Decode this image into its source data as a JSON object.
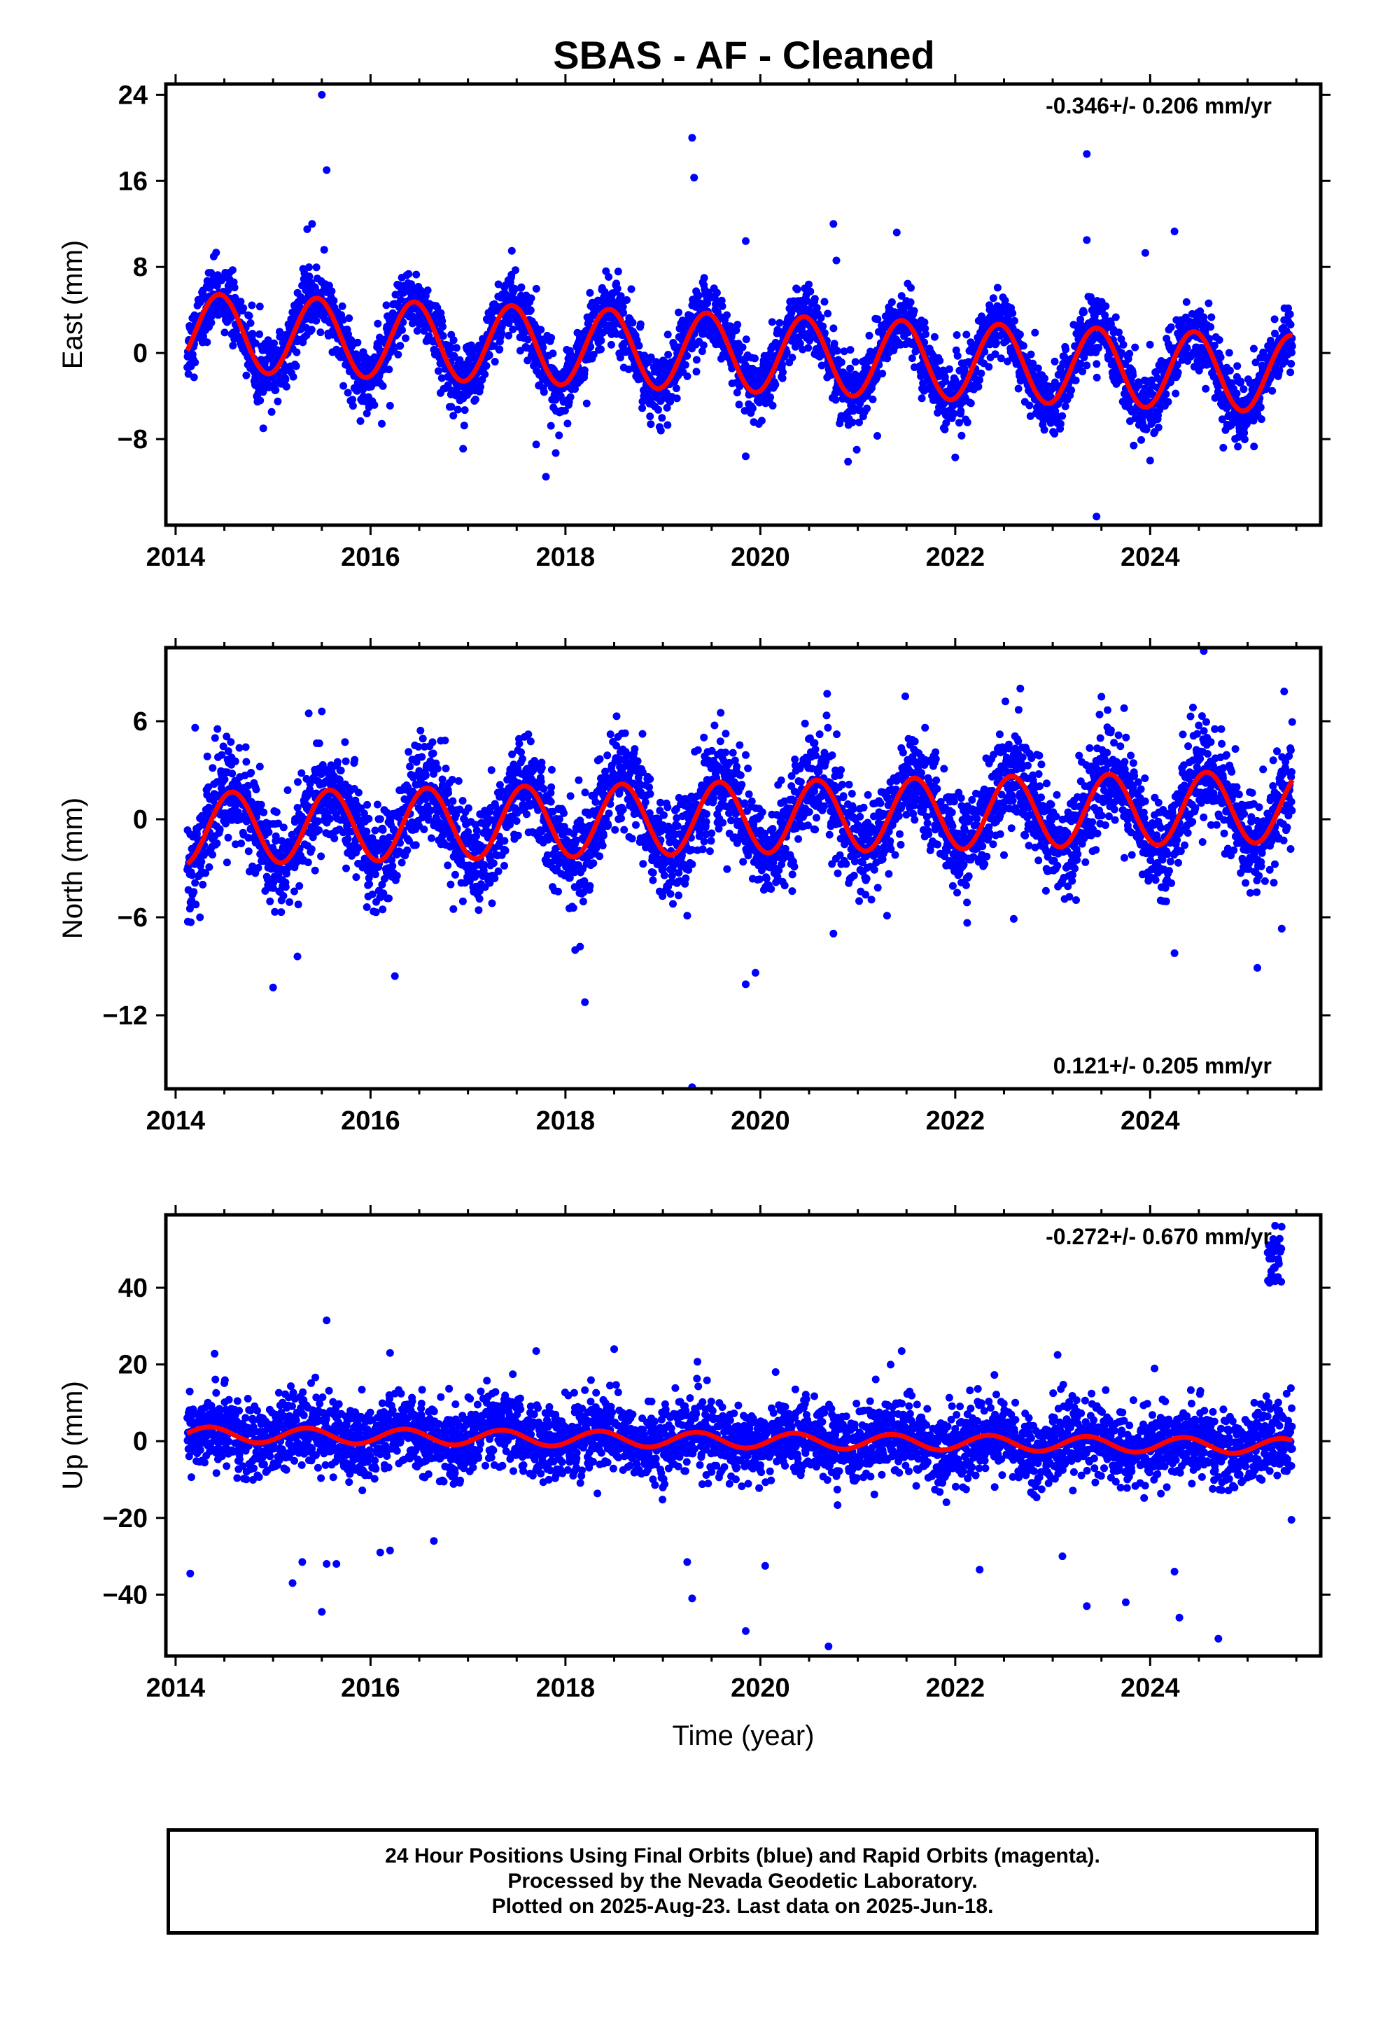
{
  "title": "SBAS  - AF - Cleaned",
  "colors": {
    "final_orbits": "#0000ff",
    "model": "#ff0000",
    "axes": "#000000"
  },
  "footer": {
    "line1": "24 Hour Positions Using Final Orbits (blue) and Rapid Orbits (magenta).",
    "line2": "Processed by the Nevada Geodetic Laboratory.",
    "line3": "Plotted on 2025-Aug-23. Last data on 2025-Jun-18."
  },
  "chart_data": [
    {
      "type": "scatter",
      "ylabel": "East (mm)",
      "rate_label": "-0.346+/- 0.206 mm/yr",
      "rate_position": "top-right",
      "xlim": [
        2013.9,
        2025.75
      ],
      "ylim": [
        -16,
        25
      ],
      "xticks": [
        2014,
        2016,
        2018,
        2020,
        2022,
        2024
      ],
      "yticks": [
        24,
        16,
        8,
        0,
        -8
      ],
      "trend": {
        "intercept_2014": 2.0,
        "rate_mm_per_yr": -0.346
      },
      "seasonal": {
        "amplitude_mm": 3.6,
        "peak_month_fraction": 0.45
      },
      "series": [
        {
          "name": "Final Orbits",
          "outliers": [
            [
              2015.5,
              24.0
            ],
            [
              2015.55,
              17.0
            ],
            [
              2015.35,
              11.5
            ],
            [
              2015.4,
              12.0
            ],
            [
              2019.3,
              20.0
            ],
            [
              2019.32,
              16.3
            ],
            [
              2020.75,
              12.0
            ],
            [
              2020.78,
              8.6
            ],
            [
              2021.4,
              11.2
            ],
            [
              2023.35,
              18.5
            ],
            [
              2023.35,
              10.5
            ],
            [
              2024.25,
              11.3
            ],
            [
              2023.95,
              9.3
            ],
            [
              2017.45,
              9.5
            ],
            [
              2016.95,
              -8.9
            ],
            [
              2017.7,
              -8.5
            ],
            [
              2017.8,
              -11.5
            ],
            [
              2017.9,
              -9.3
            ],
            [
              2019.85,
              -9.6
            ],
            [
              2020.9,
              -10.1
            ],
            [
              2022.0,
              -9.7
            ],
            [
              2023.45,
              -15.2
            ],
            [
              2024.0,
              -10.0
            ],
            [
              2014.9,
              -7.0
            ],
            [
              2021.2,
              -7.7
            ],
            [
              2024.75,
              -8.8
            ],
            [
              2024.9,
              -8.7
            ],
            [
              2016.2,
              -4.9
            ],
            [
              2019.85,
              10.4
            ]
          ]
        }
      ]
    },
    {
      "type": "scatter",
      "ylabel": "North (mm)",
      "rate_label": "0.121+/- 0.205 mm/yr",
      "rate_position": "bottom-right",
      "xlim": [
        2013.9,
        2025.75
      ],
      "ylim": [
        -16.5,
        10.5
      ],
      "xticks": [
        2014,
        2016,
        2018,
        2020,
        2022,
        2024
      ],
      "yticks": [
        6,
        0,
        -6,
        -12
      ],
      "trend": {
        "intercept_2014": -0.6,
        "rate_mm_per_yr": 0.121
      },
      "seasonal": {
        "amplitude_mm": 2.2,
        "peak_month_fraction": 0.58
      },
      "series": [
        {
          "name": "Final Orbits",
          "outliers": [
            [
              2024.55,
              10.3
            ],
            [
              2023.5,
              7.5
            ],
            [
              2022.65,
              6.7
            ],
            [
              2015.5,
              6.6
            ],
            [
              2014.2,
              5.6
            ],
            [
              2015.0,
              -10.3
            ],
            [
              2016.25,
              -9.6
            ],
            [
              2018.2,
              -11.2
            ],
            [
              2019.3,
              -16.4
            ],
            [
              2019.85,
              -10.1
            ],
            [
              2019.95,
              -9.4
            ],
            [
              2015.25,
              -8.4
            ],
            [
              2018.1,
              -8.0
            ],
            [
              2018.15,
              -7.8
            ],
            [
              2024.25,
              -8.2
            ],
            [
              2025.1,
              -9.1
            ],
            [
              2020.75,
              -7.0
            ],
            [
              2014.25,
              -6.0
            ],
            [
              2021.3,
              -5.9
            ],
            [
              2022.6,
              -6.1
            ],
            [
              2025.35,
              -6.7
            ],
            [
              2019.25,
              -5.9
            ],
            [
              2016.85,
              -5.5
            ]
          ]
        }
      ]
    },
    {
      "type": "scatter",
      "xlabel": "Time (year)",
      "ylabel": "Up (mm)",
      "rate_label": "-0.272+/- 0.670 mm/yr",
      "rate_position": "top-right",
      "xlim": [
        2013.9,
        2025.75
      ],
      "ylim": [
        -56,
        59
      ],
      "xticks": [
        2014,
        2016,
        2018,
        2020,
        2022,
        2024
      ],
      "yticks": [
        40,
        20,
        0,
        -20,
        -40
      ],
      "trend": {
        "intercept_2014": 1.8,
        "rate_mm_per_yr": -0.272
      },
      "seasonal": {
        "amplitude_mm": 2.0,
        "peak_month_fraction": 0.35
      },
      "series": [
        {
          "name": "Final Orbits",
          "outliers": [
            [
              2015.55,
              31.5
            ],
            [
              2014.15,
              -34.5
            ],
            [
              2015.2,
              -37.0
            ],
            [
              2015.3,
              -31.5
            ],
            [
              2015.5,
              -44.5
            ],
            [
              2015.65,
              -32.0
            ],
            [
              2015.55,
              -32.0
            ],
            [
              2016.1,
              -29.0
            ],
            [
              2016.2,
              -28.5
            ],
            [
              2016.65,
              -26.0
            ],
            [
              2019.25,
              -31.5
            ],
            [
              2019.3,
              -41.0
            ],
            [
              2019.85,
              -49.5
            ],
            [
              2020.05,
              -32.5
            ],
            [
              2020.7,
              -53.5
            ],
            [
              2022.25,
              -33.5
            ],
            [
              2023.1,
              -30.0
            ],
            [
              2023.35,
              -43.0
            ],
            [
              2023.75,
              -42.0
            ],
            [
              2024.25,
              -34.0
            ],
            [
              2024.3,
              -46.0
            ],
            [
              2024.7,
              -51.5
            ],
            [
              2025.45,
              -20.5
            ],
            [
              2018.5,
              24.0
            ],
            [
              2017.7,
              23.5
            ],
            [
              2021.45,
              23.5
            ],
            [
              2016.2,
              23.0
            ],
            [
              2014.4,
              22.8
            ],
            [
              2023.05,
              22.5
            ]
          ]
        },
        {
          "name": "Final Orbits (late cluster)",
          "x_range": [
            2025.2,
            2025.35
          ],
          "y_range": [
            41,
            57
          ]
        }
      ]
    }
  ]
}
